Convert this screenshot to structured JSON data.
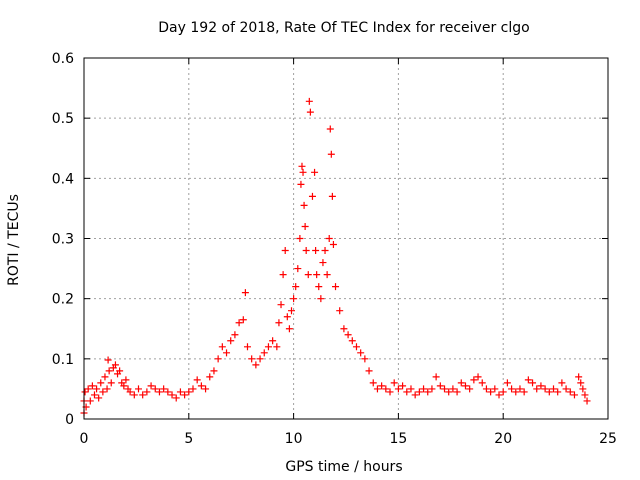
{
  "chart_data": {
    "type": "scatter",
    "title": "Day 192 of 2018, Rate Of TEC Index for receiver clgo",
    "xlabel": "GPS time / hours",
    "ylabel": "ROTI / TECUs",
    "xlim": [
      0,
      25
    ],
    "ylim": [
      0,
      0.6
    ],
    "xticks": [
      0,
      5,
      10,
      15,
      20,
      25
    ],
    "yticks": [
      0,
      0.1,
      0.2,
      0.3,
      0.4,
      0.5,
      0.6
    ],
    "xtick_labels": [
      "0",
      "5",
      "10",
      "15",
      "20",
      "25"
    ],
    "ytick_labels": [
      "0",
      "0.1",
      "0.2",
      "0.3",
      "0.4",
      "0.5",
      "0.6"
    ],
    "grid": true,
    "marker": "+",
    "color": "#ff0000",
    "series": [
      {
        "name": "ROTI",
        "points": [
          [
            0.0,
            0.01
          ],
          [
            0.0,
            0.03
          ],
          [
            0.05,
            0.045
          ],
          [
            0.1,
            0.02
          ],
          [
            0.2,
            0.05
          ],
          [
            0.3,
            0.03
          ],
          [
            0.4,
            0.055
          ],
          [
            0.5,
            0.04
          ],
          [
            0.6,
            0.05
          ],
          [
            0.7,
            0.035
          ],
          [
            0.8,
            0.06
          ],
          [
            0.9,
            0.045
          ],
          [
            1.0,
            0.07
          ],
          [
            1.1,
            0.05
          ],
          [
            1.15,
            0.098
          ],
          [
            1.2,
            0.08
          ],
          [
            1.3,
            0.06
          ],
          [
            1.4,
            0.085
          ],
          [
            1.5,
            0.09
          ],
          [
            1.6,
            0.075
          ],
          [
            1.7,
            0.08
          ],
          [
            1.8,
            0.06
          ],
          [
            1.9,
            0.055
          ],
          [
            2.0,
            0.065
          ],
          [
            2.1,
            0.05
          ],
          [
            2.2,
            0.045
          ],
          [
            2.4,
            0.04
          ],
          [
            2.6,
            0.05
          ],
          [
            2.8,
            0.04
          ],
          [
            3.0,
            0.045
          ],
          [
            3.2,
            0.055
          ],
          [
            3.4,
            0.05
          ],
          [
            3.6,
            0.045
          ],
          [
            3.8,
            0.05
          ],
          [
            4.0,
            0.045
          ],
          [
            4.2,
            0.04
          ],
          [
            4.4,
            0.035
          ],
          [
            4.6,
            0.045
          ],
          [
            4.8,
            0.04
          ],
          [
            5.0,
            0.045
          ],
          [
            5.2,
            0.05
          ],
          [
            5.4,
            0.065
          ],
          [
            5.6,
            0.055
          ],
          [
            5.8,
            0.05
          ],
          [
            6.0,
            0.07
          ],
          [
            6.2,
            0.08
          ],
          [
            6.4,
            0.1
          ],
          [
            6.6,
            0.12
          ],
          [
            6.8,
            0.11
          ],
          [
            7.0,
            0.13
          ],
          [
            7.2,
            0.14
          ],
          [
            7.4,
            0.16
          ],
          [
            7.6,
            0.165
          ],
          [
            7.7,
            0.21
          ],
          [
            7.8,
            0.12
          ],
          [
            8.0,
            0.1
          ],
          [
            8.2,
            0.09
          ],
          [
            8.4,
            0.1
          ],
          [
            8.6,
            0.11
          ],
          [
            8.8,
            0.12
          ],
          [
            9.0,
            0.13
          ],
          [
            9.2,
            0.12
          ],
          [
            9.3,
            0.16
          ],
          [
            9.4,
            0.19
          ],
          [
            9.5,
            0.24
          ],
          [
            9.6,
            0.28
          ],
          [
            9.7,
            0.17
          ],
          [
            9.8,
            0.15
          ],
          [
            9.9,
            0.18
          ],
          [
            10.0,
            0.2
          ],
          [
            10.1,
            0.22
          ],
          [
            10.2,
            0.25
          ],
          [
            10.3,
            0.3
          ],
          [
            10.35,
            0.39
          ],
          [
            10.4,
            0.42
          ],
          [
            10.45,
            0.41
          ],
          [
            10.5,
            0.355
          ],
          [
            10.55,
            0.32
          ],
          [
            10.6,
            0.28
          ],
          [
            10.7,
            0.24
          ],
          [
            10.75,
            0.528
          ],
          [
            10.8,
            0.51
          ],
          [
            10.9,
            0.37
          ],
          [
            11.0,
            0.41
          ],
          [
            11.05,
            0.28
          ],
          [
            11.1,
            0.24
          ],
          [
            11.2,
            0.22
          ],
          [
            11.3,
            0.2
          ],
          [
            11.4,
            0.26
          ],
          [
            11.5,
            0.28
          ],
          [
            11.6,
            0.24
          ],
          [
            11.7,
            0.3
          ],
          [
            11.75,
            0.482
          ],
          [
            11.8,
            0.44
          ],
          [
            11.85,
            0.37
          ],
          [
            11.9,
            0.29
          ],
          [
            12.0,
            0.22
          ],
          [
            12.2,
            0.18
          ],
          [
            12.4,
            0.15
          ],
          [
            12.6,
            0.14
          ],
          [
            12.8,
            0.13
          ],
          [
            13.0,
            0.12
          ],
          [
            13.2,
            0.11
          ],
          [
            13.4,
            0.1
          ],
          [
            13.6,
            0.08
          ],
          [
            13.8,
            0.06
          ],
          [
            14.0,
            0.05
          ],
          [
            14.2,
            0.055
          ],
          [
            14.4,
            0.05
          ],
          [
            14.6,
            0.045
          ],
          [
            14.8,
            0.06
          ],
          [
            15.0,
            0.05
          ],
          [
            15.2,
            0.055
          ],
          [
            15.4,
            0.045
          ],
          [
            15.6,
            0.05
          ],
          [
            15.8,
            0.04
          ],
          [
            16.0,
            0.045
          ],
          [
            16.2,
            0.05
          ],
          [
            16.4,
            0.045
          ],
          [
            16.6,
            0.05
          ],
          [
            16.8,
            0.07
          ],
          [
            17.0,
            0.055
          ],
          [
            17.2,
            0.05
          ],
          [
            17.4,
            0.045
          ],
          [
            17.6,
            0.05
          ],
          [
            17.8,
            0.045
          ],
          [
            18.0,
            0.06
          ],
          [
            18.2,
            0.055
          ],
          [
            18.4,
            0.05
          ],
          [
            18.6,
            0.065
          ],
          [
            18.8,
            0.07
          ],
          [
            19.0,
            0.06
          ],
          [
            19.2,
            0.05
          ],
          [
            19.4,
            0.045
          ],
          [
            19.6,
            0.05
          ],
          [
            19.8,
            0.04
          ],
          [
            20.0,
            0.045
          ],
          [
            20.2,
            0.06
          ],
          [
            20.4,
            0.05
          ],
          [
            20.6,
            0.045
          ],
          [
            20.8,
            0.05
          ],
          [
            21.0,
            0.045
          ],
          [
            21.2,
            0.065
          ],
          [
            21.4,
            0.06
          ],
          [
            21.6,
            0.05
          ],
          [
            21.8,
            0.055
          ],
          [
            22.0,
            0.05
          ],
          [
            22.2,
            0.045
          ],
          [
            22.4,
            0.05
          ],
          [
            22.6,
            0.045
          ],
          [
            22.8,
            0.06
          ],
          [
            23.0,
            0.05
          ],
          [
            23.2,
            0.045
          ],
          [
            23.4,
            0.04
          ],
          [
            23.6,
            0.07
          ],
          [
            23.7,
            0.06
          ],
          [
            23.8,
            0.05
          ],
          [
            23.9,
            0.04
          ],
          [
            24.0,
            0.03
          ]
        ]
      }
    ]
  }
}
